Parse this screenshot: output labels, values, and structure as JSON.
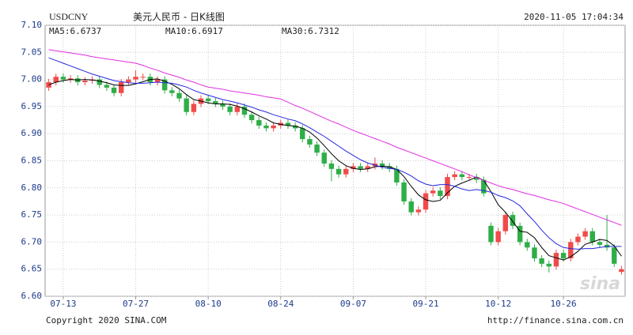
{
  "chart_data": {
    "type": "candlestick",
    "symbol": "USDCNY",
    "title": "美元人民币 - 日K线图",
    "timestamp": "2020-11-05 17:04:34",
    "footer_left": "Copyright 2020 SINA.COM",
    "footer_right": "http://finance.sina.com.cn",
    "watermark": "sina",
    "up_color": "#f04b4b",
    "down_color": "#2eae47",
    "grid": true,
    "ylim": [
      6.6,
      7.1
    ],
    "yticks": [
      {
        "value": 6.6,
        "label": "6.60"
      },
      6.65,
      {
        "value": 6.7,
        "label": "6.70"
      },
      6.75,
      {
        "value": 6.8,
        "label": "6.80"
      },
      6.85,
      {
        "value": 6.9,
        "label": "6.90"
      },
      6.95,
      {
        "value": 7.0,
        "label": "7.00"
      },
      7.05,
      {
        "value": 7.1,
        "label": "7.10"
      }
    ],
    "categories": [
      null,
      null,
      "07-13",
      null,
      null,
      null,
      null,
      null,
      null,
      null,
      null,
      null,
      "07-27",
      null,
      null,
      null,
      null,
      null,
      null,
      null,
      null,
      null,
      "08-10",
      null,
      null,
      null,
      null,
      null,
      null,
      null,
      null,
      null,
      "08-24",
      null,
      null,
      null,
      null,
      null,
      null,
      null,
      null,
      null,
      "09-07",
      null,
      null,
      null,
      null,
      null,
      null,
      null,
      null,
      null,
      "09-21",
      null,
      null,
      null,
      null,
      null,
      null,
      null,
      null,
      null,
      "10-12",
      null,
      null,
      null,
      null,
      null,
      null,
      null,
      null,
      "10-26",
      null,
      null,
      null,
      null,
      null,
      null,
      null,
      null
    ],
    "open": [
      6.985,
      6.995,
      7.005,
      7.0,
      7.002,
      6.995,
      6.998,
      7.0,
      6.99,
      6.985,
      6.975,
      6.995,
      7.0,
      7.005,
      7.005,
      6.995,
      7.0,
      6.98,
      6.975,
      6.965,
      6.94,
      6.955,
      6.965,
      6.96,
      6.955,
      6.95,
      6.94,
      6.95,
      6.935,
      6.925,
      6.915,
      6.91,
      6.915,
      6.92,
      6.915,
      6.91,
      6.89,
      6.88,
      6.865,
      6.845,
      6.835,
      6.825,
      6.835,
      6.84,
      6.835,
      6.84,
      6.845,
      6.84,
      6.835,
      6.81,
      6.775,
      6.755,
      6.76,
      6.79,
      6.795,
      6.785,
      6.82,
      6.825,
      6.82,
      6.82,
      6.815,
      6.73,
      6.7,
      6.72,
      6.75,
      6.73,
      6.7,
      6.69,
      6.67,
      6.66,
      6.655,
      6.68,
      6.67,
      6.7,
      6.71,
      6.72,
      6.7,
      6.695,
      6.69,
      6.645
    ],
    "high": [
      7.001,
      7.011,
      7.011,
      7.008,
      7.008,
      7.004,
      7.006,
      7.006,
      6.996,
      6.991,
      7.001,
      7.006,
      7.017,
      7.011,
      7.011,
      7.006,
      7.006,
      6.986,
      6.981,
      6.971,
      6.961,
      6.971,
      6.971,
      6.966,
      6.961,
      6.956,
      6.956,
      6.956,
      6.941,
      6.931,
      6.921,
      6.921,
      6.926,
      6.926,
      6.921,
      6.916,
      6.896,
      6.886,
      6.871,
      6.851,
      6.841,
      6.841,
      6.846,
      6.846,
      6.846,
      6.856,
      6.851,
      6.846,
      6.841,
      6.816,
      6.781,
      6.766,
      6.796,
      6.801,
      6.801,
      6.826,
      6.831,
      6.831,
      6.826,
      6.826,
      6.821,
      6.736,
      6.726,
      6.756,
      6.756,
      6.736,
      6.706,
      6.696,
      6.676,
      6.666,
      6.686,
      6.686,
      6.706,
      6.716,
      6.726,
      6.726,
      6.706,
      6.75,
      6.696,
      6.656
    ],
    "low": [
      6.979,
      6.989,
      6.994,
      6.994,
      6.989,
      6.989,
      6.992,
      6.984,
      6.979,
      6.969,
      6.969,
      6.989,
      6.994,
      6.999,
      6.989,
      6.989,
      6.974,
      6.969,
      6.959,
      6.934,
      6.934,
      6.949,
      6.954,
      6.949,
      6.944,
      6.934,
      6.934,
      6.929,
      6.919,
      6.909,
      6.904,
      6.904,
      6.909,
      6.909,
      6.904,
      6.884,
      6.874,
      6.859,
      6.839,
      6.812,
      6.819,
      6.819,
      6.829,
      6.829,
      6.829,
      6.834,
      6.834,
      6.829,
      6.804,
      6.769,
      6.749,
      6.749,
      6.754,
      6.784,
      6.779,
      6.779,
      6.814,
      6.814,
      6.814,
      6.809,
      6.784,
      6.694,
      6.694,
      6.714,
      6.724,
      6.694,
      6.684,
      6.664,
      6.654,
      6.644,
      6.649,
      6.664,
      6.664,
      6.694,
      6.704,
      6.694,
      6.689,
      6.684,
      6.654,
      6.64
    ],
    "close": [
      6.995,
      7.005,
      7.0,
      7.002,
      6.995,
      6.998,
      7.0,
      6.99,
      6.985,
      6.975,
      6.995,
      7.0,
      7.005,
      7.005,
      6.995,
      7.0,
      6.98,
      6.975,
      6.965,
      6.94,
      6.955,
      6.965,
      6.96,
      6.955,
      6.95,
      6.94,
      6.95,
      6.935,
      6.925,
      6.915,
      6.91,
      6.915,
      6.92,
      6.915,
      6.91,
      6.89,
      6.88,
      6.865,
      6.845,
      6.835,
      6.825,
      6.835,
      6.84,
      6.835,
      6.84,
      6.845,
      6.84,
      6.835,
      6.81,
      6.775,
      6.755,
      6.76,
      6.79,
      6.795,
      6.785,
      6.82,
      6.825,
      6.82,
      6.82,
      6.815,
      6.79,
      6.7,
      6.72,
      6.75,
      6.73,
      6.7,
      6.69,
      6.67,
      6.66,
      6.655,
      6.68,
      6.67,
      6.7,
      6.71,
      6.72,
      6.7,
      6.695,
      6.69,
      6.66,
      6.65
    ],
    "series": [
      {
        "name": "MA5:6.6737",
        "color": "#000000",
        "values": [
          6.99,
          6.995,
          6.998,
          7.0,
          6.999,
          7.0,
          6.999,
          6.997,
          6.994,
          6.99,
          6.989,
          6.989,
          6.992,
          6.996,
          7.0,
          7.001,
          6.997,
          6.991,
          6.983,
          6.972,
          6.963,
          6.96,
          6.957,
          6.955,
          6.955,
          6.954,
          6.951,
          6.946,
          6.94,
          6.933,
          6.927,
          6.92,
          6.917,
          6.915,
          6.914,
          6.91,
          6.903,
          6.892,
          6.878,
          6.863,
          6.85,
          6.841,
          6.836,
          6.834,
          6.835,
          6.839,
          6.84,
          6.839,
          6.834,
          6.821,
          6.803,
          6.787,
          6.778,
          6.775,
          6.777,
          6.791,
          6.803,
          6.809,
          6.814,
          6.82,
          6.814,
          6.793,
          6.769,
          6.755,
          6.738,
          6.72,
          6.718,
          6.708,
          6.69,
          6.675,
          6.671,
          6.667,
          6.673,
          6.683,
          6.696,
          6.7,
          6.705,
          6.703,
          6.693,
          6.674
        ]
      },
      {
        "name": "MA10:6.6917",
        "color": "#2727e0",
        "values": [
          7.04,
          7.035,
          7.03,
          7.025,
          7.02,
          7.015,
          7.01,
          7.006,
          7.002,
          6.998,
          6.996,
          6.994,
          6.993,
          6.993,
          6.994,
          6.995,
          6.994,
          6.993,
          6.99,
          6.986,
          6.98,
          6.975,
          6.971,
          6.967,
          6.963,
          6.96,
          6.957,
          6.953,
          6.949,
          6.944,
          6.94,
          6.935,
          6.931,
          6.927,
          6.924,
          6.918,
          6.911,
          6.903,
          6.895,
          6.886,
          6.877,
          6.868,
          6.86,
          6.852,
          6.846,
          6.842,
          6.838,
          6.836,
          6.834,
          6.829,
          6.822,
          6.813,
          6.807,
          6.804,
          6.806,
          6.806,
          6.803,
          6.798,
          6.795,
          6.797,
          6.795,
          6.792,
          6.786,
          6.782,
          6.776,
          6.767,
          6.752,
          6.738,
          6.722,
          6.708,
          6.697,
          6.69,
          6.688,
          6.687,
          6.688,
          6.688,
          6.69,
          6.692,
          6.692,
          6.692
        ]
      },
      {
        "name": "MA30:6.7312",
        "color": "#e02ee0",
        "values": [
          7.055,
          7.053,
          7.051,
          7.049,
          7.047,
          7.045,
          7.042,
          7.04,
          7.038,
          7.036,
          7.034,
          7.032,
          7.03,
          7.026,
          7.021,
          7.017,
          7.012,
          7.008,
          7.004,
          6.999,
          6.995,
          6.99,
          6.986,
          6.984,
          6.982,
          6.979,
          6.977,
          6.975,
          6.973,
          6.971,
          6.968,
          6.966,
          6.964,
          6.958,
          6.952,
          6.947,
          6.941,
          6.935,
          6.929,
          6.923,
          6.918,
          6.912,
          6.906,
          6.901,
          6.896,
          6.891,
          6.886,
          6.881,
          6.875,
          6.87,
          6.865,
          6.86,
          6.855,
          6.85,
          6.845,
          6.84,
          6.835,
          6.83,
          6.824,
          6.819,
          6.814,
          6.809,
          6.804,
          6.8,
          6.797,
          6.793,
          6.789,
          6.786,
          6.782,
          6.778,
          6.775,
          6.771,
          6.766,
          6.761,
          6.756,
          6.751,
          6.746,
          6.741,
          6.736,
          6.731
        ]
      }
    ]
  }
}
